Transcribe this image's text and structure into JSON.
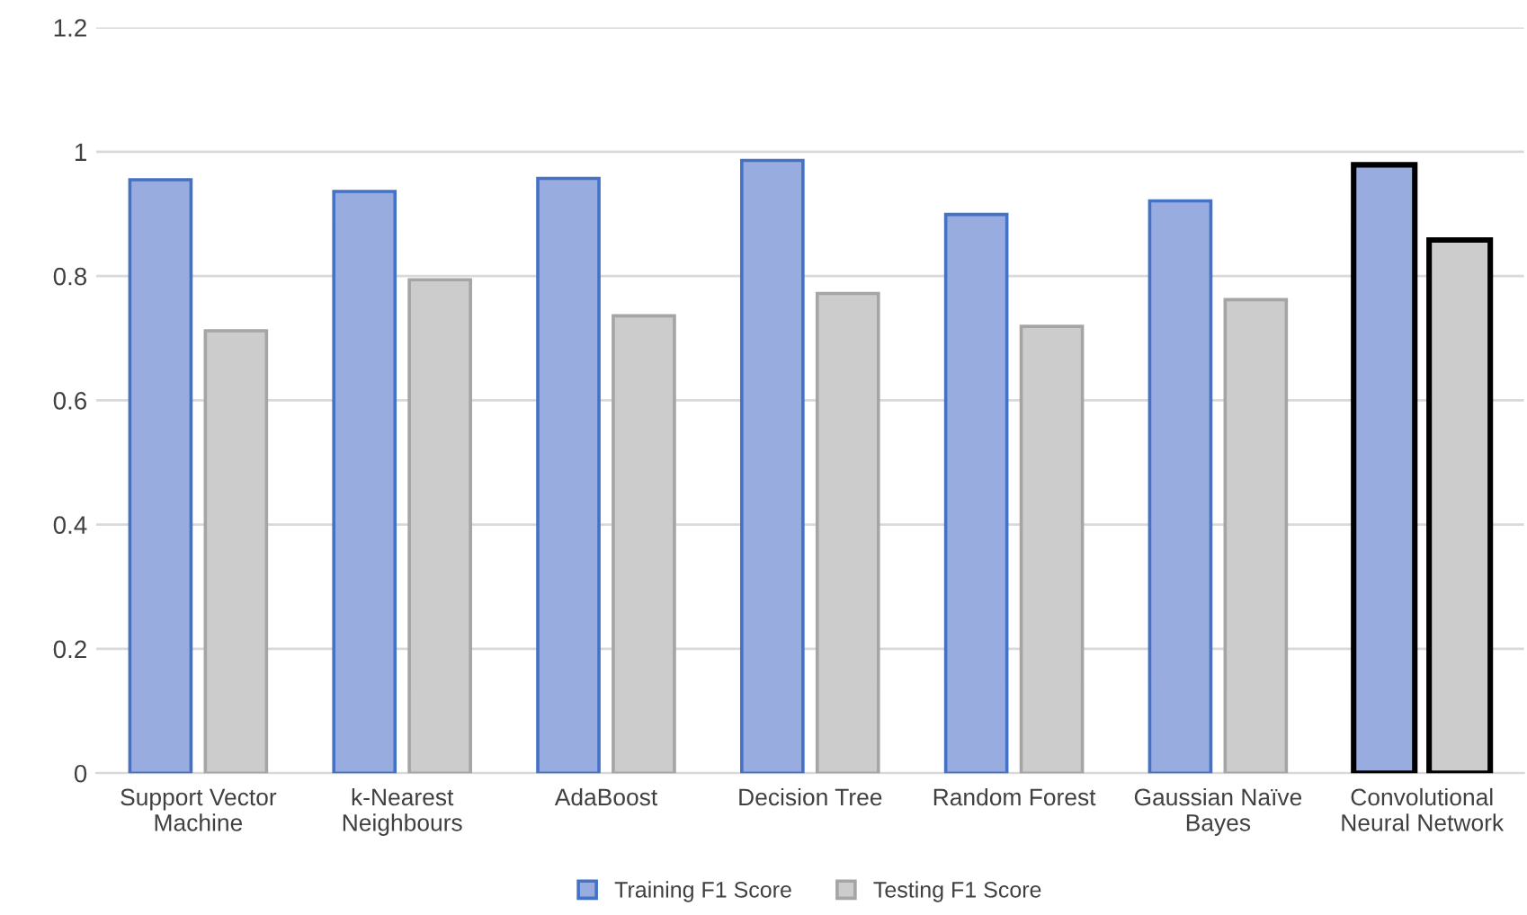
{
  "chart_data": {
    "type": "bar",
    "categories": [
      "Support Vector Machine",
      "k-Nearest Neighbours",
      "AdaBoost",
      "Decision Tree",
      "Random Forest",
      "Gaussian Naïve Bayes",
      "Convolutional Neural Network"
    ],
    "series": [
      {
        "name": "Training F1 Score",
        "color": "#98ace0",
        "values": [
          0.955,
          0.936,
          0.957,
          0.986,
          0.899,
          0.921,
          0.979
        ]
      },
      {
        "name": "Testing F1 Score",
        "color": "#cccccc",
        "values": [
          0.712,
          0.794,
          0.736,
          0.772,
          0.719,
          0.762,
          0.858
        ]
      }
    ],
    "ylim": [
      0,
      1.2
    ],
    "yticks": [
      0,
      0.2,
      0.4,
      0.6,
      0.8,
      1,
      1.2
    ],
    "grid": "y",
    "legend": "bottom"
  }
}
